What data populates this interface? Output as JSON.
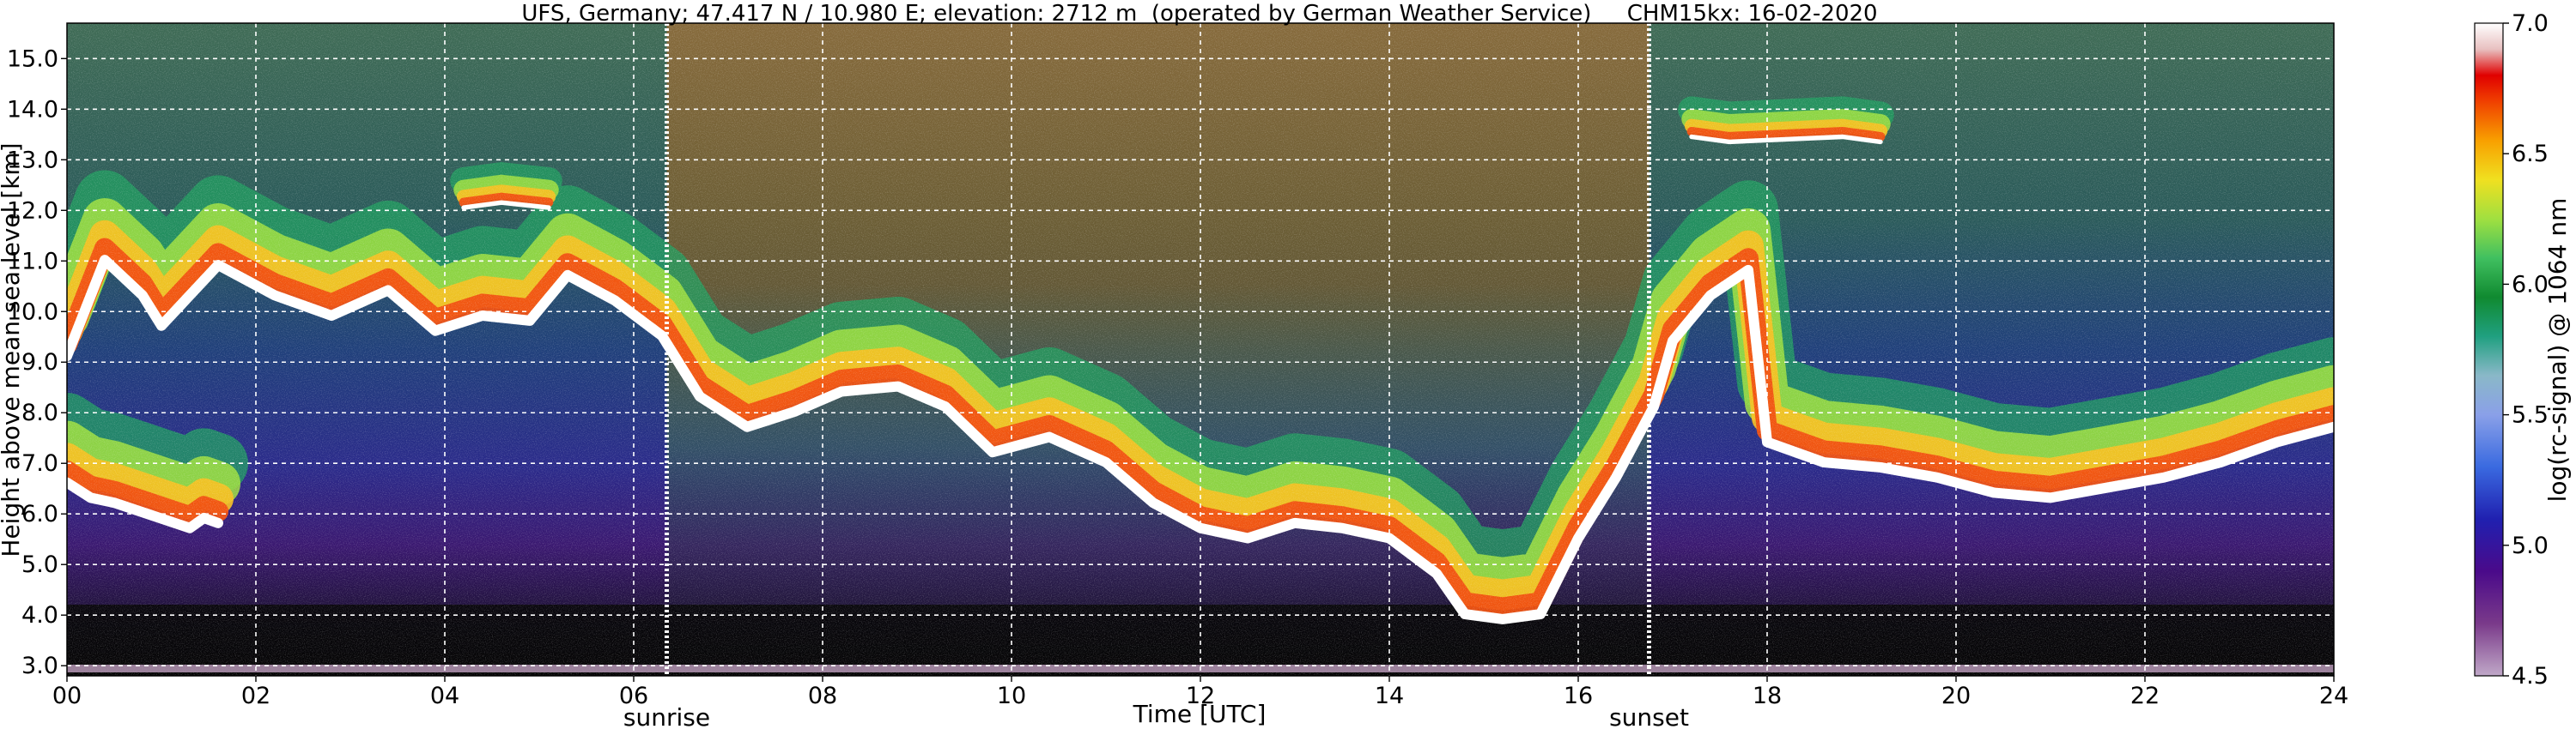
{
  "chart_data": {
    "type": "heatmap",
    "title": "UFS, Germany; 47.417 N / 10.980 E; elevation: 2712 m  (operated by German Weather Service)     CHM15kx: 16-02-2020",
    "xlabel": "Time [UTC]",
    "ylabel": "Height above mean sea level [km]",
    "xlim": [
      0,
      24
    ],
    "ylim": [
      2.8,
      15.7
    ],
    "x_ticks": [
      "00",
      "02",
      "04",
      "06",
      "08",
      "10",
      "12",
      "14",
      "16",
      "18",
      "20",
      "22",
      "24"
    ],
    "y_ticks": [
      "3.0",
      "4.0",
      "5.0",
      "6.0",
      "7.0",
      "8.0",
      "9.0",
      "10.0",
      "11.0",
      "12.0",
      "13.0",
      "14.0",
      "15.0"
    ],
    "grid": true,
    "colorbar": {
      "label": "log(rc-signal) @ 1064 nm",
      "range": [
        4.5,
        7.0
      ],
      "ticks": [
        "4.5",
        "5.0",
        "5.5",
        "6.0",
        "6.5",
        "7.0"
      ]
    },
    "markers": [
      {
        "label": "sunrise",
        "time": 6.35
      },
      {
        "label": "sunset",
        "time": 16.75
      }
    ],
    "layers": [
      {
        "name": "cloud",
        "points": [
          [
            0,
            9.0
          ],
          [
            0.4,
            10.9
          ],
          [
            0.8,
            10.2
          ],
          [
            1.0,
            9.6
          ],
          [
            1.6,
            10.8
          ],
          [
            2.2,
            10.2
          ],
          [
            2.8,
            9.8
          ],
          [
            3.4,
            10.3
          ],
          [
            3.9,
            9.5
          ],
          [
            4.4,
            9.8
          ],
          [
            4.9,
            9.7
          ],
          [
            5.3,
            10.6
          ],
          [
            5.8,
            10.1
          ],
          [
            6.3,
            9.4
          ],
          [
            6.7,
            8.2
          ],
          [
            7.2,
            7.6
          ],
          [
            7.7,
            7.9
          ],
          [
            8.2,
            8.3
          ],
          [
            8.8,
            8.4
          ],
          [
            9.3,
            8.0
          ],
          [
            9.8,
            7.1
          ],
          [
            10.4,
            7.4
          ],
          [
            11.0,
            6.9
          ],
          [
            11.5,
            6.1
          ],
          [
            12.0,
            5.6
          ],
          [
            12.5,
            5.4
          ],
          [
            13.0,
            5.7
          ],
          [
            13.5,
            5.6
          ],
          [
            14.0,
            5.4
          ],
          [
            14.5,
            4.7
          ],
          [
            14.8,
            3.9
          ],
          [
            15.2,
            3.8
          ],
          [
            15.6,
            3.9
          ],
          [
            16.0,
            5.4
          ],
          [
            16.4,
            6.6
          ],
          [
            16.8,
            8.0
          ],
          [
            17.0,
            9.3
          ],
          [
            17.4,
            10.2
          ],
          [
            17.8,
            10.7
          ],
          [
            18.0,
            7.3
          ],
          [
            18.6,
            6.9
          ],
          [
            19.2,
            6.8
          ],
          [
            19.8,
            6.6
          ],
          [
            20.4,
            6.3
          ],
          [
            21.0,
            6.2
          ],
          [
            21.6,
            6.4
          ],
          [
            22.2,
            6.6
          ],
          [
            22.8,
            6.9
          ],
          [
            23.4,
            7.3
          ],
          [
            24,
            7.6
          ]
        ]
      },
      {
        "name": "early-cloud",
        "points": [
          [
            0.0,
            6.5
          ],
          [
            0.25,
            6.2
          ],
          [
            0.5,
            6.1
          ],
          [
            1.3,
            5.6
          ],
          [
            1.45,
            5.8
          ],
          [
            1.6,
            5.7
          ]
        ]
      },
      {
        "name": "cirrus",
        "points": [
          [
            4.2,
            12.0
          ],
          [
            4.6,
            12.1
          ],
          [
            5.1,
            12.0
          ],
          [
            17.2,
            13.4
          ],
          [
            17.6,
            13.3
          ],
          [
            18.8,
            13.4
          ],
          [
            19.2,
            13.3
          ]
        ]
      }
    ]
  }
}
